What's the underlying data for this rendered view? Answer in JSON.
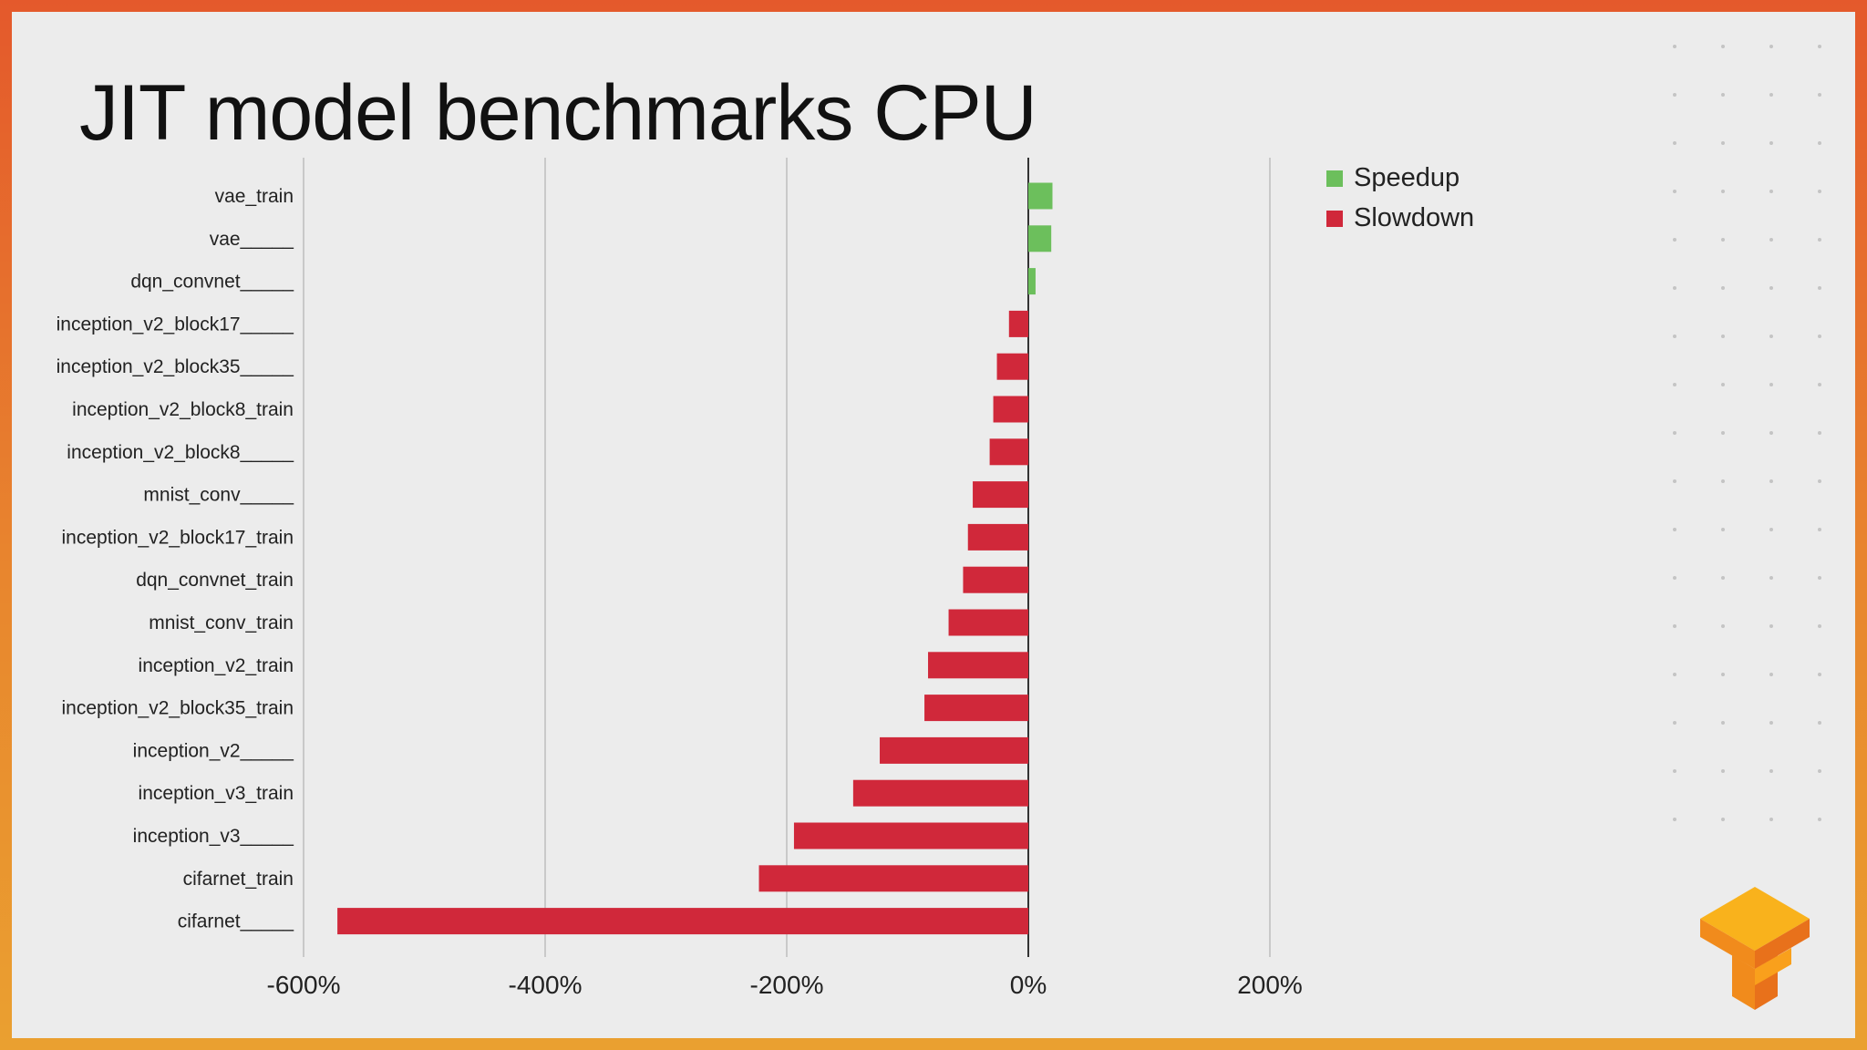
{
  "slide": {
    "title": "JIT model benchmarks CPU"
  },
  "colors": {
    "speedup": "#6cbf5c",
    "slowdown": "#d0283a",
    "grid": "#bdbdbd",
    "axis": "#333333"
  },
  "chart_data": {
    "type": "bar",
    "orientation": "horizontal",
    "title": "JIT model benchmarks CPU",
    "xlabel": "",
    "ylabel": "",
    "x_unit": "%",
    "xlim": [
      -600,
      200
    ],
    "xticks": [
      -600,
      -400,
      -200,
      0,
      200
    ],
    "xtick_labels": [
      "-600%",
      "-400%",
      "-200%",
      "0%",
      "200%"
    ],
    "grid": true,
    "legend_position": "top-right",
    "legend": [
      {
        "label": "Speedup",
        "color": "#6cbf5c"
      },
      {
        "label": "Slowdown",
        "color": "#d0283a"
      }
    ],
    "categories": [
      "vae_train",
      "vae_____",
      "dqn_convnet_____",
      "inception_v2_block17_____",
      "inception_v2_block35_____",
      "inception_v2_block8_train",
      "inception_v2_block8_____",
      "mnist_conv_____",
      "inception_v2_block17_train",
      "dqn_convnet_train",
      "mnist_conv_train",
      "inception_v2_train",
      "inception_v2_block35_train",
      "inception_v2_____",
      "inception_v3_train",
      "inception_v3_____",
      "cifarnet_train",
      "cifarnet_____"
    ],
    "values": [
      20,
      19,
      6,
      -16,
      -26,
      -29,
      -32,
      -46,
      -50,
      -54,
      -66,
      -83,
      -86,
      -123,
      -145,
      -194,
      -223,
      -572
    ]
  }
}
